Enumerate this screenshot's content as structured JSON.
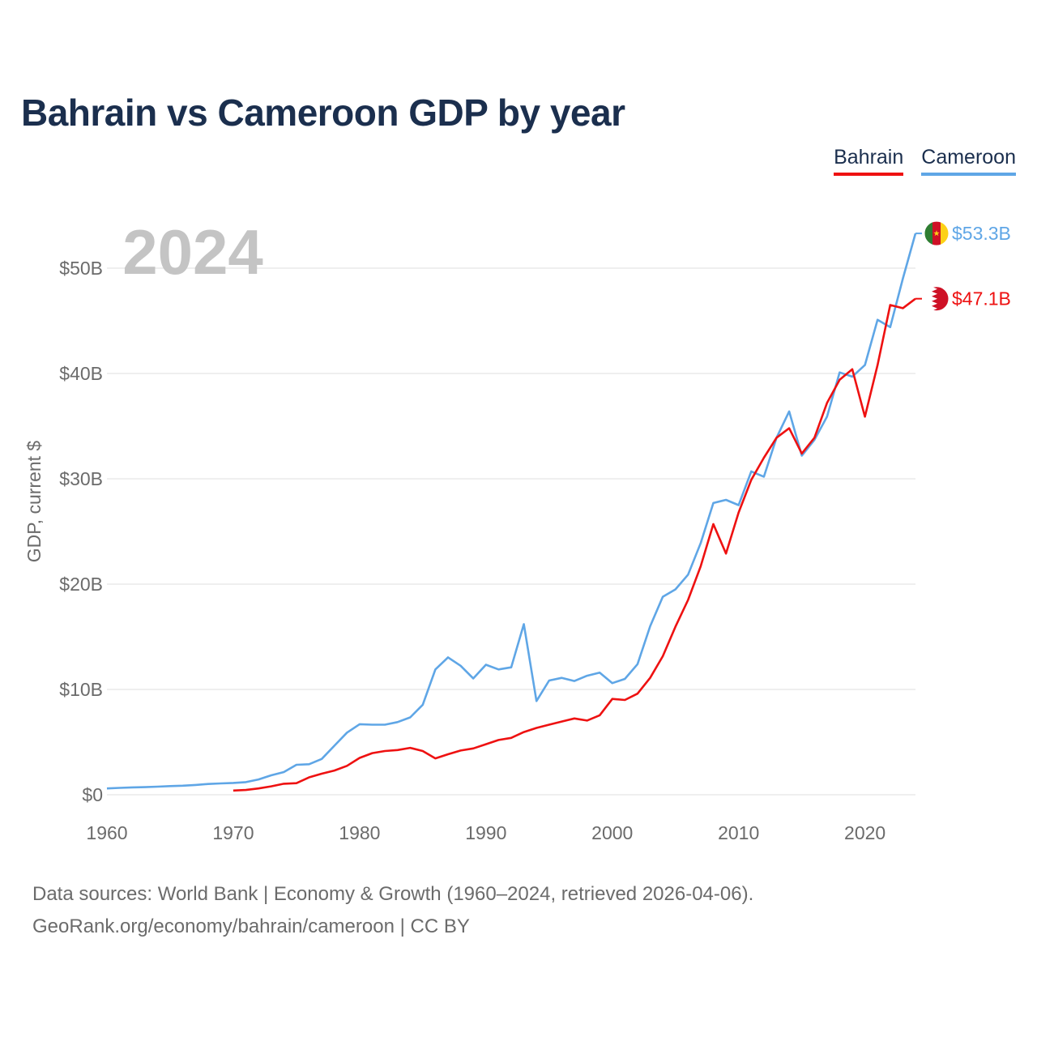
{
  "title": "Bahrain vs Cameroon GDP by year",
  "legend": {
    "bahrain": "Bahrain",
    "cameroon": "Cameroon"
  },
  "year_watermark": "2024",
  "sources": {
    "line1": "Data sources: World Bank | Economy & Growth (1960–2024, retrieved 2026-04-06).",
    "line2": "GeoRank.org/economy/bahrain/cameroon | CC BY"
  },
  "colors": {
    "bahrain": "#ee1111",
    "cameroon": "#5fa6e6",
    "grid": "#e5e5e5",
    "axis_text": "#6b6b6b",
    "title": "#1b2f4e",
    "watermark": "#c4c4c4"
  },
  "icons": {
    "cameroon_flag": "cameroon-flag-icon",
    "bahrain_flag": "bahrain-flag-icon"
  },
  "chart_data": {
    "type": "line",
    "title": "Bahrain vs Cameroon GDP by year",
    "xlabel": "",
    "ylabel": "GDP, current $",
    "xlim": [
      1960,
      2024
    ],
    "ylim": [
      0,
      55
    ],
    "x_ticks": [
      1960,
      1970,
      1980,
      1990,
      2000,
      2010,
      2020
    ],
    "x_tick_labels": [
      "1960",
      "1970",
      "1980",
      "1990",
      "2000",
      "2010",
      "2020"
    ],
    "y_ticks": [
      0,
      10,
      20,
      30,
      40,
      50
    ],
    "y_tick_labels": [
      "$0",
      "$10B",
      "$20B",
      "$30B",
      "$40B",
      "$50B"
    ],
    "grid": true,
    "legend_position": "top-right",
    "series": [
      {
        "name": "Cameroon",
        "end_label": "$53.3B",
        "points": [
          [
            1960,
            0.6
          ],
          [
            1961,
            0.65
          ],
          [
            1962,
            0.7
          ],
          [
            1963,
            0.72
          ],
          [
            1964,
            0.77
          ],
          [
            1965,
            0.82
          ],
          [
            1966,
            0.86
          ],
          [
            1967,
            0.93
          ],
          [
            1968,
            1.02
          ],
          [
            1969,
            1.08
          ],
          [
            1970,
            1.12
          ],
          [
            1971,
            1.2
          ],
          [
            1972,
            1.45
          ],
          [
            1973,
            1.85
          ],
          [
            1974,
            2.15
          ],
          [
            1975,
            2.85
          ],
          [
            1976,
            2.9
          ],
          [
            1977,
            3.4
          ],
          [
            1978,
            4.65
          ],
          [
            1979,
            5.9
          ],
          [
            1980,
            6.7
          ],
          [
            1981,
            6.65
          ],
          [
            1982,
            6.65
          ],
          [
            1983,
            6.9
          ],
          [
            1984,
            7.35
          ],
          [
            1985,
            8.55
          ],
          [
            1986,
            11.9
          ],
          [
            1987,
            13.05
          ],
          [
            1988,
            12.25
          ],
          [
            1989,
            11.05
          ],
          [
            1990,
            12.35
          ],
          [
            1991,
            11.9
          ],
          [
            1992,
            12.1
          ],
          [
            1993,
            16.2
          ],
          [
            1994,
            8.9
          ],
          [
            1995,
            10.85
          ],
          [
            1996,
            11.1
          ],
          [
            1997,
            10.8
          ],
          [
            1998,
            11.3
          ],
          [
            1999,
            11.6
          ],
          [
            2000,
            10.6
          ],
          [
            2001,
            11.0
          ],
          [
            2002,
            12.4
          ],
          [
            2003,
            16.0
          ],
          [
            2004,
            18.8
          ],
          [
            2005,
            19.5
          ],
          [
            2006,
            20.9
          ],
          [
            2007,
            23.9
          ],
          [
            2008,
            27.7
          ],
          [
            2009,
            28.0
          ],
          [
            2010,
            27.5
          ],
          [
            2011,
            30.7
          ],
          [
            2012,
            30.2
          ],
          [
            2013,
            33.9
          ],
          [
            2014,
            36.4
          ],
          [
            2015,
            32.2
          ],
          [
            2016,
            33.7
          ],
          [
            2017,
            35.9
          ],
          [
            2018,
            40.1
          ],
          [
            2019,
            39.7
          ],
          [
            2020,
            40.8
          ],
          [
            2021,
            45.1
          ],
          [
            2022,
            44.4
          ],
          [
            2023,
            49.0
          ],
          [
            2024,
            53.3
          ]
        ]
      },
      {
        "name": "Bahrain",
        "end_label": "$47.1B",
        "points": [
          [
            1970,
            0.4
          ],
          [
            1971,
            0.45
          ],
          [
            1972,
            0.6
          ],
          [
            1973,
            0.8
          ],
          [
            1974,
            1.05
          ],
          [
            1975,
            1.1
          ],
          [
            1976,
            1.65
          ],
          [
            1977,
            2.0
          ],
          [
            1978,
            2.3
          ],
          [
            1979,
            2.75
          ],
          [
            1980,
            3.5
          ],
          [
            1981,
            3.95
          ],
          [
            1982,
            4.15
          ],
          [
            1983,
            4.25
          ],
          [
            1984,
            4.45
          ],
          [
            1985,
            4.15
          ],
          [
            1986,
            3.45
          ],
          [
            1987,
            3.85
          ],
          [
            1988,
            4.2
          ],
          [
            1989,
            4.4
          ],
          [
            1990,
            4.8
          ],
          [
            1991,
            5.2
          ],
          [
            1992,
            5.4
          ],
          [
            1993,
            5.95
          ],
          [
            1994,
            6.35
          ],
          [
            1995,
            6.65
          ],
          [
            1996,
            6.95
          ],
          [
            1997,
            7.25
          ],
          [
            1998,
            7.05
          ],
          [
            1999,
            7.55
          ],
          [
            2000,
            9.1
          ],
          [
            2001,
            9.0
          ],
          [
            2002,
            9.6
          ],
          [
            2003,
            11.1
          ],
          [
            2004,
            13.15
          ],
          [
            2005,
            15.95
          ],
          [
            2006,
            18.5
          ],
          [
            2007,
            21.7
          ],
          [
            2008,
            25.7
          ],
          [
            2009,
            22.9
          ],
          [
            2010,
            26.8
          ],
          [
            2011,
            29.9
          ],
          [
            2012,
            32.0
          ],
          [
            2013,
            33.9
          ],
          [
            2014,
            34.8
          ],
          [
            2015,
            32.4
          ],
          [
            2016,
            33.9
          ],
          [
            2017,
            37.2
          ],
          [
            2018,
            39.4
          ],
          [
            2019,
            40.4
          ],
          [
            2020,
            35.9
          ],
          [
            2021,
            40.8
          ],
          [
            2022,
            46.5
          ],
          [
            2023,
            46.2
          ],
          [
            2024,
            47.1
          ]
        ]
      }
    ]
  }
}
